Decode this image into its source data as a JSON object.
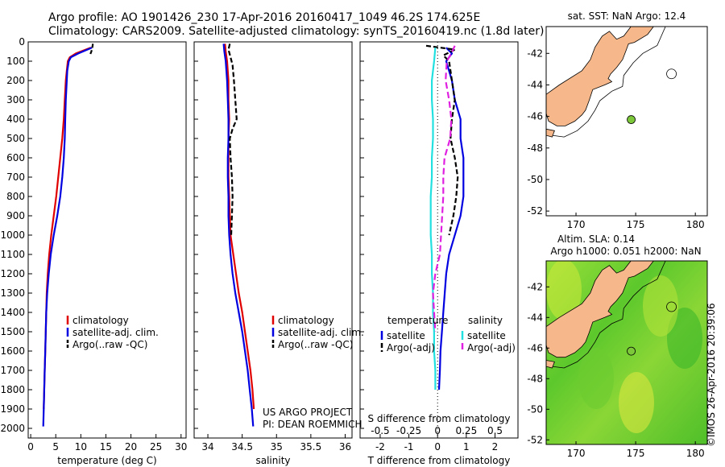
{
  "header": {
    "line1": "Argo profile: AO 1901426_230 17-Apr-2016 20160417_1049 46.2S 174.625E",
    "line2": "Climatology: CARS2009. Satellite-adjusted climatology: synTS_20160419.nc (1.8d later)"
  },
  "side_text": "©IMOS 26-Apr-2016 20:39:06",
  "colors": {
    "climatology": "#e00000",
    "satellite": "#0000e0",
    "argo": "#000000",
    "cyan": "#22e0e0",
    "magenta": "#e020e0",
    "land": "#f6b88a",
    "float": "#7cc83a"
  },
  "chart_data": [
    {
      "type": "line",
      "id": "temperature",
      "xlabel": "temperature (deg C)",
      "ylabel": "",
      "xlim": [
        -0.5,
        31
      ],
      "ylim": [
        0,
        2050
      ],
      "y_inverted": true,
      "xticks": [
        "0",
        "5",
        "10",
        "15",
        "20",
        "25",
        "30"
      ],
      "yticks": [
        "0",
        "100",
        "200",
        "300",
        "400",
        "500",
        "600",
        "700",
        "800",
        "900",
        "1000",
        "1100",
        "1200",
        "1300",
        "1400",
        "1500",
        "1600",
        "1700",
        "1800",
        "1900",
        "2000"
      ],
      "legend": [
        "climatology",
        "satellite-adj. clim.",
        "Argo(..raw -QC)"
      ],
      "series": [
        {
          "name": "climatology",
          "depth": [
            30,
            60,
            80,
            100,
            150,
            200,
            300,
            400,
            500,
            600,
            700,
            800,
            900,
            1000,
            1100,
            1200,
            1300,
            1400,
            1500,
            1600,
            1700,
            1800,
            1900
          ],
          "values": [
            12.0,
            9.0,
            7.8,
            7.4,
            7.2,
            7.0,
            6.8,
            6.6,
            6.3,
            5.9,
            5.5,
            5.1,
            4.6,
            4.1,
            3.7,
            3.4,
            3.2,
            3.1,
            3.0,
            2.9,
            2.8,
            2.7,
            2.6
          ]
        },
        {
          "name": "satellite-adj. clim.",
          "depth": [
            30,
            60,
            80,
            100,
            150,
            200,
            300,
            400,
            500,
            600,
            700,
            800,
            900,
            1000,
            1100,
            1200,
            1300,
            1400,
            1500,
            1600,
            1700,
            1800,
            1900,
            1990
          ],
          "values": [
            12.2,
            9.5,
            8.0,
            7.6,
            7.3,
            7.2,
            7.0,
            6.9,
            6.8,
            6.6,
            6.3,
            5.9,
            5.3,
            4.6,
            4.0,
            3.6,
            3.3,
            3.1,
            3.0,
            2.9,
            2.8,
            2.7,
            2.6,
            2.5
          ]
        },
        {
          "name": "Argo(..raw -QC)",
          "depth": [
            10,
            30,
            50,
            70
          ],
          "values": [
            12.4,
            12.3,
            12.1,
            11.8
          ]
        }
      ]
    },
    {
      "type": "line",
      "id": "salinity",
      "xlabel": "salinity",
      "xlim": [
        33.8,
        36.1
      ],
      "ylim": [
        0,
        2050
      ],
      "y_inverted": true,
      "xticks": [
        "34",
        "34.5",
        "35",
        "35.5",
        "36"
      ],
      "legend": [
        "climatology",
        "satellite-adj. clim.",
        "Argo(..raw -QC)"
      ],
      "annotation": [
        "US ARGO PROJECT",
        "PI: DEAN ROEMMICH"
      ],
      "series": [
        {
          "name": "climatology",
          "depth": [
            10,
            50,
            100,
            200,
            300,
            400,
            500,
            600,
            700,
            800,
            900,
            1000,
            1100,
            1200,
            1300,
            1400,
            1500,
            1600,
            1700,
            1800,
            1900
          ],
          "values": [
            34.25,
            34.26,
            34.28,
            34.3,
            34.3,
            34.31,
            34.3,
            34.3,
            34.3,
            34.31,
            34.32,
            34.33,
            34.37,
            34.41,
            34.45,
            34.5,
            34.54,
            34.58,
            34.62,
            34.65,
            34.67
          ]
        },
        {
          "name": "satellite-adj. clim.",
          "depth": [
            10,
            50,
            100,
            200,
            300,
            400,
            500,
            600,
            700,
            800,
            900,
            1000,
            1100,
            1200,
            1300,
            1400,
            1500,
            1600,
            1700,
            1800,
            1900,
            1990
          ],
          "values": [
            34.23,
            34.24,
            34.26,
            34.28,
            34.29,
            34.3,
            34.3,
            34.29,
            34.29,
            34.3,
            34.3,
            34.31,
            34.33,
            34.36,
            34.4,
            34.45,
            34.5,
            34.54,
            34.58,
            34.61,
            34.64,
            34.66
          ]
        },
        {
          "name": "Argo(..raw -QC)",
          "depth": [
            10,
            40,
            80,
            120,
            200,
            300,
            400,
            450,
            500,
            600,
            700,
            800,
            900,
            1000
          ],
          "values": [
            34.32,
            34.3,
            34.33,
            34.36,
            34.38,
            34.4,
            34.42,
            34.36,
            34.32,
            34.33,
            34.35,
            34.36,
            34.35,
            34.34
          ]
        }
      ]
    },
    {
      "type": "line",
      "id": "difference",
      "xlabel_top": "S difference from climatology",
      "xlabel": "T difference from climatology",
      "xlim": [
        -2.7,
        2.8
      ],
      "ylim": [
        0,
        2050
      ],
      "y_inverted": true,
      "xticks_T": [
        "-2",
        "-1",
        "0",
        "1",
        "2"
      ],
      "xticks_S": [
        "-0.5",
        "-0.25",
        "0",
        "0.25",
        "0.5"
      ],
      "legend_groups": [
        {
          "title": "temperature",
          "items": [
            "satellite",
            "Argo(-adj)"
          ]
        },
        {
          "title": "salinity",
          "items": [
            "satellite",
            "Argo(-adj)"
          ]
        }
      ],
      "series": [
        {
          "name": "temperature satellite",
          "depth": [
            30,
            60,
            100,
            200,
            300,
            400,
            500,
            600,
            700,
            800,
            900,
            1000,
            1100,
            1200,
            1300,
            1400,
            1500,
            1600,
            1700,
            1800
          ],
          "values": [
            0.3,
            0.5,
            0.3,
            0.5,
            0.6,
            0.8,
            0.8,
            0.9,
            0.9,
            0.9,
            0.8,
            0.6,
            0.4,
            0.3,
            0.25,
            0.2,
            0.15,
            0.1,
            0.08,
            0.05
          ]
        },
        {
          "name": "temperature Argo(-adj)",
          "depth": [
            20,
            40,
            70,
            100,
            200,
            300,
            400,
            500,
            600,
            700,
            800,
            900,
            1000
          ],
          "values": [
            -0.4,
            0.6,
            0.2,
            0.4,
            0.5,
            0.6,
            0.5,
            0.45,
            0.6,
            0.7,
            0.65,
            0.55,
            0.4
          ]
        },
        {
          "name": "salinity satellite",
          "depth": [
            30,
            100,
            200,
            300,
            400,
            500,
            600,
            700,
            800,
            900,
            1000,
            1100,
            1200,
            1300,
            1400,
            1500,
            1600,
            1700,
            1800
          ],
          "values": [
            -0.02,
            -0.03,
            -0.05,
            -0.05,
            -0.04,
            -0.04,
            -0.05,
            -0.05,
            -0.06,
            -0.06,
            -0.06,
            -0.05,
            -0.05,
            -0.04,
            -0.04,
            -0.03,
            -0.03,
            -0.02,
            -0.02
          ]
        },
        {
          "name": "salinity Argo(-adj)",
          "depth": [
            20,
            60,
            100,
            200,
            300,
            400,
            500,
            600,
            700,
            800,
            900,
            1000,
            1100,
            1200,
            1300,
            1400,
            1500
          ],
          "values": [
            0.15,
            0.12,
            0.08,
            0.07,
            0.1,
            0.12,
            0.11,
            0.06,
            0.05,
            0.05,
            0.04,
            0.03,
            0.02,
            -0.02,
            -0.04,
            -0.03,
            -0.02
          ]
        }
      ]
    },
    {
      "type": "map",
      "id": "sst_map",
      "title": "sat. SST: NaN Argo: 12.4",
      "lon_range": [
        167.5,
        181
      ],
      "lat_range": [
        -52.3,
        -40.3
      ],
      "xticks": [
        "170",
        "175",
        "180"
      ],
      "yticks": [
        "-42",
        "-44",
        "-46",
        "-48",
        "-50",
        "-52"
      ],
      "float_position": {
        "lon": 174.625,
        "lat": -46.2
      }
    },
    {
      "type": "map",
      "id": "sla_map",
      "title": "Altim. SLA: 0.14",
      "subtitle": "Argo h1000: 0.051 h2000: NaN",
      "lon_range": [
        167.5,
        181
      ],
      "lat_range": [
        -52.3,
        -40.3
      ],
      "xticks": [
        "170",
        "175",
        "180"
      ],
      "yticks": [
        "-42",
        "-44",
        "-46",
        "-48",
        "-50",
        "-52"
      ],
      "float_position": {
        "lon": 174.625,
        "lat": -46.2
      }
    }
  ]
}
